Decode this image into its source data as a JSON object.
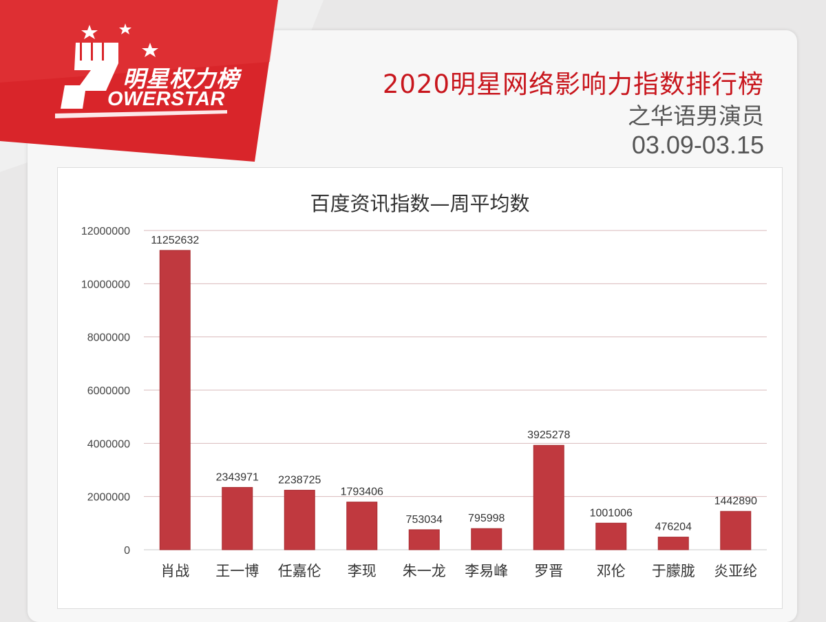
{
  "logo": {
    "cn_text": "明星权力榜",
    "en_text": "OWERSTAR"
  },
  "header": {
    "title": "2020明星网络影响力指数排行榜",
    "subtitle": "之华语男演员",
    "date_range": "03.09-03.15"
  },
  "colors": {
    "bar": "#c0393f",
    "brand_red": "#c8161d",
    "grid": "#d9b9bb"
  },
  "chart_data": {
    "type": "bar",
    "title": "百度资讯指数—周平均数",
    "xlabel": "",
    "ylabel": "",
    "ylim": [
      0,
      12000000
    ],
    "yticks": [
      "0",
      "2000000",
      "4000000",
      "6000000",
      "8000000",
      "10000000",
      "12000000"
    ],
    "yticks_values": [
      0,
      2000000,
      4000000,
      6000000,
      8000000,
      10000000,
      12000000
    ],
    "grid": true,
    "categories": [
      "肖战",
      "王一博",
      "任嘉伦",
      "李现",
      "朱一龙",
      "李易峰",
      "罗晋",
      "邓伦",
      "于朦胧",
      "炎亚纶"
    ],
    "values": [
      11252632,
      2343971,
      2238725,
      1793406,
      753034,
      795998,
      3925278,
      1001006,
      476204,
      1442890
    ],
    "value_labels": [
      "11252632",
      "2343971",
      "2238725",
      "1793406",
      "753034",
      "795998",
      "3925278",
      "1001006",
      "476204",
      "1442890"
    ]
  }
}
